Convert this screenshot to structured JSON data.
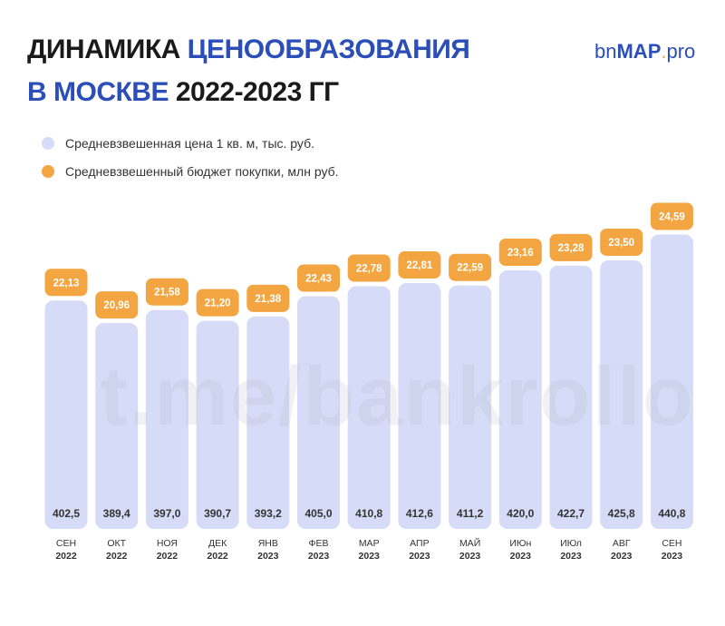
{
  "title": {
    "line1_black": "ДИНАМИКА",
    "line1_blue": "ЦЕНООБРАЗОВАНИЯ",
    "line2_blue": "В МОСКВЕ",
    "line2_black": "2022-2023 ГГ"
  },
  "logo": {
    "prefix": "bn",
    "brand": "MAP",
    "dot": ".",
    "suffix": "pro"
  },
  "watermark": "t.me/bankrollo",
  "colors": {
    "price_bar": "#d6dcf7",
    "budget_box": "#f2a541",
    "title_blue": "#2b4eb8"
  },
  "chart_data": {
    "type": "bar",
    "categories": [
      [
        "СЕН",
        "2022"
      ],
      [
        "ОКТ",
        "2022"
      ],
      [
        "НОЯ",
        "2022"
      ],
      [
        "ДЕК",
        "2022"
      ],
      [
        "ЯНВ",
        "2023"
      ],
      [
        "ФЕВ",
        "2023"
      ],
      [
        "МАР",
        "2023"
      ],
      [
        "АПР",
        "2023"
      ],
      [
        "МАЙ",
        "2023"
      ],
      [
        "ИЮн",
        "2023"
      ],
      [
        "ИЮл",
        "2023"
      ],
      [
        "АВГ",
        "2023"
      ],
      [
        "СЕН",
        "2023"
      ]
    ],
    "series": [
      {
        "name": "Средневзвешенная цена 1 кв. м, тыс. руб.",
        "values": [
          402.5,
          389.4,
          397.0,
          390.7,
          393.2,
          405.0,
          410.8,
          412.6,
          411.2,
          420.0,
          422.7,
          425.8,
          440.8
        ],
        "labels": [
          "402,5",
          "389,4",
          "397,0",
          "390,7",
          "393,2",
          "405,0",
          "410,8",
          "412,6",
          "411,2",
          "420,0",
          "422,7",
          "425,8",
          "440,8"
        ]
      },
      {
        "name": "Средневзвешенный бюджет покупки, млн руб.",
        "values": [
          22.13,
          20.96,
          21.58,
          21.2,
          21.38,
          22.43,
          22.78,
          22.81,
          22.59,
          23.16,
          23.28,
          23.5,
          24.59
        ],
        "labels": [
          "22,13",
          "20,96",
          "21,58",
          "21,20",
          "21,38",
          "22,43",
          "22,78",
          "22,81",
          "22,59",
          "23,16",
          "23,28",
          "23,50",
          "24,59"
        ]
      }
    ],
    "legend": "top-left",
    "grid": false
  }
}
